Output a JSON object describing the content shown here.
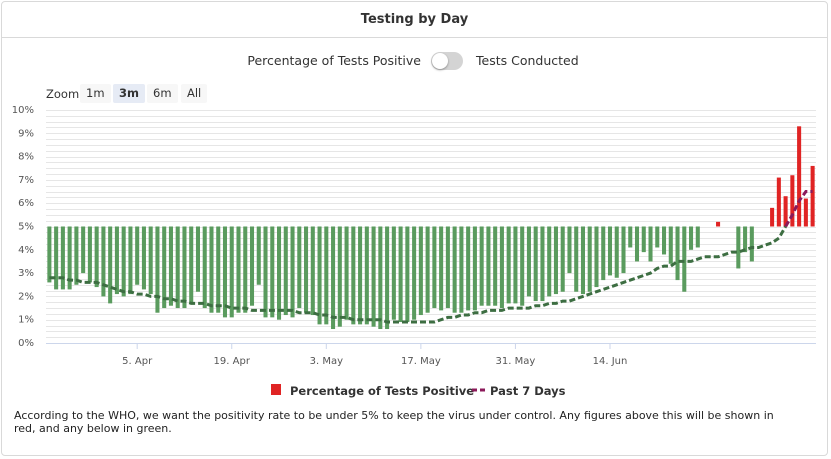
{
  "card": {
    "title": "Testing by Day"
  },
  "toggle": {
    "left_label": "Percentage of Tests Positive",
    "right_label": "Tests Conducted"
  },
  "zoom": {
    "label": "Zoom",
    "buttons": [
      "1m",
      "3m",
      "6m",
      "All"
    ],
    "selected": "3m"
  },
  "footnote": "According to the WHO, we want the positivity rate to be under 5% to keep the virus under control. Any figures above this will be shown in red, and any below in green.",
  "colors": {
    "below": "#5a9b5e",
    "above": "#e02424",
    "avg_below": "#3d6e42",
    "avg_above": "#8b1a5a",
    "grid": "#e6e6e6"
  },
  "chart_data": {
    "type": "bar",
    "title": "Testing by Day",
    "threshold": 5,
    "ylim": [
      0,
      10
    ],
    "yticks": [
      "0%",
      "1%",
      "2%",
      "3%",
      "4%",
      "5%",
      "6%",
      "7%",
      "8%",
      "9%",
      "10%"
    ],
    "x_start": "2020-03-23",
    "xticks": [
      {
        "label": "5. Apr",
        "date": "2020-04-05"
      },
      {
        "label": "19. Apr",
        "date": "2020-04-19"
      },
      {
        "label": "3. May",
        "date": "2020-05-03"
      },
      {
        "label": "17. May",
        "date": "2020-05-17"
      },
      {
        "label": "31. May",
        "date": "2020-05-31"
      },
      {
        "label": "14. Jun",
        "date": "2020-06-14"
      }
    ],
    "series": [
      {
        "name": "Percentage of Tests Positive",
        "values": [
          2.6,
          2.3,
          2.3,
          2.3,
          2.5,
          3.0,
          2.6,
          2.4,
          2.0,
          1.7,
          2.1,
          2.0,
          2.1,
          2.5,
          2.3,
          2.1,
          1.3,
          1.5,
          1.6,
          1.5,
          1.5,
          1.7,
          2.2,
          1.5,
          1.3,
          1.3,
          1.1,
          1.1,
          1.3,
          1.3,
          1.6,
          2.5,
          1.1,
          1.1,
          1.0,
          1.2,
          1.1,
          1.5,
          1.3,
          1.2,
          0.8,
          0.8,
          0.6,
          0.7,
          1.0,
          0.8,
          0.8,
          0.8,
          0.7,
          0.6,
          0.6,
          1.0,
          0.9,
          0.9,
          1.0,
          1.2,
          1.3,
          1.5,
          1.4,
          1.5,
          1.3,
          1.3,
          1.4,
          1.4,
          1.6,
          1.6,
          1.6,
          1.5,
          1.7,
          1.7,
          1.6,
          2.0,
          1.8,
          1.8,
          2.0,
          2.1,
          2.2,
          3.0,
          2.2,
          2.1,
          2.2,
          2.4,
          2.7,
          2.9,
          2.8,
          3.0,
          4.1,
          3.5,
          3.9,
          3.5,
          4.1,
          3.8,
          3.4,
          2.7,
          2.2,
          4.0,
          4.1,
          null,
          null,
          5.2,
          null,
          null,
          3.2,
          3.9,
          3.5,
          null,
          null,
          5.8,
          7.1,
          6.3,
          7.2,
          9.3,
          6.2,
          7.6
        ],
        "color_rule": "red above 5%, green below 5%"
      },
      {
        "name": "Past 7 Days",
        "values": [
          2.8,
          2.8,
          2.8,
          2.7,
          2.7,
          2.6,
          2.6,
          2.6,
          2.5,
          2.4,
          2.3,
          2.2,
          2.2,
          2.1,
          2.1,
          2.0,
          2.0,
          1.9,
          1.9,
          1.8,
          1.8,
          1.7,
          1.7,
          1.7,
          1.6,
          1.6,
          1.6,
          1.5,
          1.5,
          1.5,
          1.4,
          1.4,
          1.4,
          1.4,
          1.4,
          1.4,
          1.4,
          1.3,
          1.3,
          1.3,
          1.2,
          1.2,
          1.1,
          1.1,
          1.1,
          1.0,
          1.0,
          1.0,
          1.0,
          1.0,
          0.9,
          0.9,
          0.9,
          0.9,
          0.9,
          0.9,
          0.9,
          0.9,
          1.0,
          1.1,
          1.1,
          1.2,
          1.2,
          1.3,
          1.3,
          1.4,
          1.4,
          1.4,
          1.5,
          1.5,
          1.5,
          1.5,
          1.6,
          1.6,
          1.7,
          1.7,
          1.8,
          1.8,
          1.9,
          2.0,
          2.1,
          2.2,
          2.3,
          2.4,
          2.5,
          2.6,
          2.7,
          2.8,
          2.9,
          3.0,
          3.2,
          3.3,
          3.3,
          3.5,
          3.5,
          3.5,
          3.6,
          3.7,
          3.7,
          3.7,
          3.8,
          3.9,
          3.9,
          4.0,
          4.1,
          4.1,
          4.2,
          4.3,
          4.5,
          5.0,
          5.5,
          6.1,
          6.5,
          6.5
        ],
        "style": "dashed"
      }
    ],
    "legend": "bottom-center",
    "grid": true
  }
}
